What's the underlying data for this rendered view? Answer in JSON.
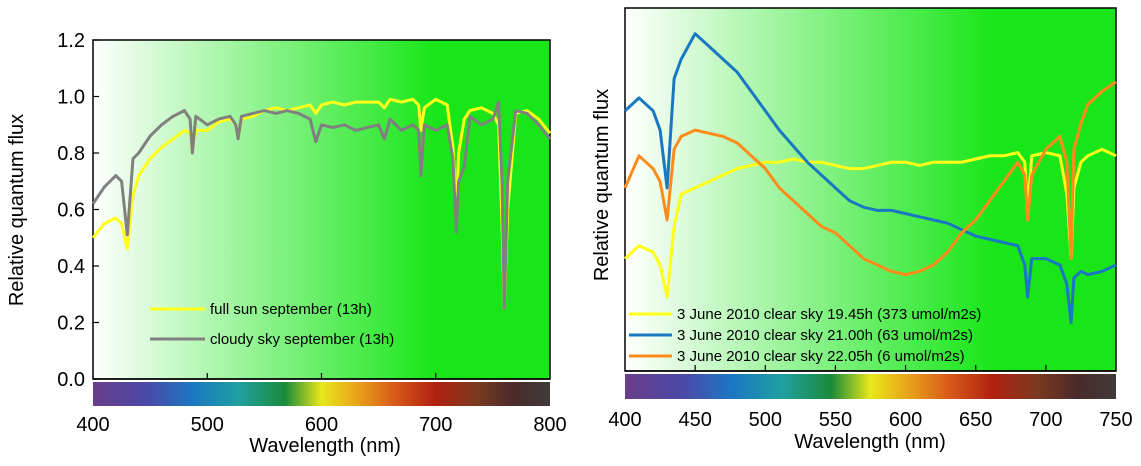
{
  "colors": {
    "bg_start": "#ffffff",
    "bg_end": "#19e619",
    "full_sun": "#ffff1a",
    "cloudy": "#808080",
    "h1945": "#ffff1a",
    "h2100": "#1a78c2",
    "h2205": "#ff8c1a"
  },
  "chart_data": [
    {
      "type": "line",
      "title": "",
      "xlabel": "Wavelength (nm)",
      "ylabel": "Relative quantum flux",
      "xlim": [
        400,
        800
      ],
      "ylim": [
        0,
        1.2
      ],
      "x_ticks": [
        "400",
        "500",
        "600",
        "700",
        "800"
      ],
      "y_ticks": [
        "0.0",
        "0.2",
        "0.4",
        "0.6",
        "0.8",
        "1.0",
        "1.2"
      ],
      "grid": false,
      "legend_position": "bottom-center",
      "spectrum_bar": true,
      "series": [
        {
          "name": "full sun september (13h)",
          "x": [
            400,
            410,
            420,
            425,
            430,
            435,
            440,
            450,
            460,
            470,
            480,
            485,
            487,
            490,
            500,
            510,
            520,
            525,
            527,
            530,
            540,
            550,
            560,
            570,
            580,
            590,
            595,
            600,
            610,
            620,
            630,
            640,
            650,
            655,
            660,
            670,
            680,
            685,
            687,
            690,
            700,
            710,
            715,
            718,
            720,
            725,
            730,
            740,
            750,
            755,
            758,
            760,
            763,
            770,
            780,
            790,
            800
          ],
          "y": [
            0.5,
            0.55,
            0.57,
            0.55,
            0.46,
            0.65,
            0.72,
            0.78,
            0.82,
            0.85,
            0.88,
            0.87,
            0.8,
            0.88,
            0.88,
            0.91,
            0.92,
            0.9,
            0.85,
            0.92,
            0.93,
            0.95,
            0.96,
            0.95,
            0.96,
            0.97,
            0.94,
            0.97,
            0.98,
            0.97,
            0.98,
            0.98,
            0.98,
            0.96,
            0.99,
            0.98,
            0.99,
            0.97,
            0.88,
            0.96,
            0.99,
            0.97,
            0.82,
            0.6,
            0.8,
            0.92,
            0.95,
            0.96,
            0.94,
            0.9,
            0.55,
            0.25,
            0.6,
            0.94,
            0.95,
            0.92,
            0.87
          ]
        },
        {
          "name": "cloudy sky september (13h)",
          "x": [
            400,
            405,
            410,
            420,
            425,
            430,
            435,
            440,
            450,
            460,
            470,
            480,
            485,
            487,
            490,
            500,
            510,
            520,
            525,
            527,
            530,
            540,
            550,
            560,
            570,
            580,
            590,
            595,
            600,
            610,
            620,
            630,
            640,
            650,
            655,
            660,
            670,
            680,
            685,
            687,
            690,
            700,
            710,
            715,
            718,
            720,
            725,
            730,
            740,
            750,
            755,
            758,
            760,
            763,
            770,
            780,
            790,
            800
          ],
          "y": [
            0.62,
            0.65,
            0.68,
            0.72,
            0.7,
            0.51,
            0.78,
            0.8,
            0.86,
            0.9,
            0.93,
            0.95,
            0.92,
            0.8,
            0.93,
            0.9,
            0.92,
            0.93,
            0.9,
            0.85,
            0.93,
            0.94,
            0.95,
            0.94,
            0.95,
            0.94,
            0.92,
            0.84,
            0.9,
            0.89,
            0.9,
            0.88,
            0.89,
            0.9,
            0.85,
            0.92,
            0.88,
            0.9,
            0.88,
            0.72,
            0.9,
            0.88,
            0.9,
            0.78,
            0.52,
            0.7,
            0.75,
            0.93,
            0.9,
            0.92,
            0.98,
            0.7,
            0.25,
            0.7,
            0.95,
            0.94,
            0.9,
            0.85
          ]
        }
      ]
    },
    {
      "type": "line",
      "title": "",
      "xlabel": "Wavelength (nm)",
      "ylabel": "Relative quantum flux",
      "xlim": [
        400,
        750
      ],
      "x_ticks": [
        "400",
        "450",
        "500",
        "550",
        "600",
        "650",
        "700",
        "750"
      ],
      "y_ticks": [],
      "grid": false,
      "legend_position": "bottom-left",
      "spectrum_bar": true,
      "series": [
        {
          "name": "3 June 2010 clear sky 19.45h (373 umol/m2s)",
          "x": [
            400,
            410,
            420,
            425,
            430,
            435,
            440,
            450,
            460,
            470,
            480,
            490,
            500,
            510,
            520,
            530,
            540,
            550,
            560,
            570,
            580,
            590,
            600,
            610,
            620,
            630,
            640,
            650,
            660,
            670,
            680,
            685,
            687,
            690,
            700,
            710,
            715,
            718,
            720,
            725,
            730,
            740,
            750
          ],
          "y": [
            0.4,
            0.44,
            0.42,
            0.38,
            0.28,
            0.5,
            0.6,
            0.62,
            0.64,
            0.66,
            0.68,
            0.69,
            0.7,
            0.7,
            0.71,
            0.7,
            0.7,
            0.69,
            0.68,
            0.68,
            0.69,
            0.7,
            0.7,
            0.69,
            0.7,
            0.7,
            0.7,
            0.71,
            0.72,
            0.72,
            0.73,
            0.7,
            0.55,
            0.72,
            0.73,
            0.72,
            0.6,
            0.4,
            0.62,
            0.7,
            0.72,
            0.74,
            0.72
          ]
        },
        {
          "name": "3 June 2010 clear sky 21.00h (63 umol/m2s)",
          "x": [
            400,
            410,
            420,
            425,
            430,
            435,
            440,
            450,
            460,
            470,
            480,
            490,
            500,
            510,
            520,
            530,
            540,
            550,
            560,
            570,
            580,
            590,
            600,
            610,
            620,
            630,
            640,
            650,
            660,
            670,
            680,
            685,
            687,
            690,
            700,
            710,
            715,
            718,
            720,
            725,
            730,
            740,
            750
          ],
          "y": [
            0.86,
            0.9,
            0.86,
            0.8,
            0.62,
            0.96,
            1.02,
            1.1,
            1.06,
            1.02,
            0.98,
            0.92,
            0.86,
            0.8,
            0.75,
            0.7,
            0.66,
            0.62,
            0.58,
            0.56,
            0.55,
            0.55,
            0.54,
            0.53,
            0.52,
            0.51,
            0.49,
            0.47,
            0.46,
            0.45,
            0.44,
            0.38,
            0.28,
            0.4,
            0.4,
            0.38,
            0.32,
            0.2,
            0.34,
            0.36,
            0.35,
            0.36,
            0.38
          ]
        },
        {
          "name": "3 June 2010 clear sky 22.05h (6 umol/m2s)",
          "x": [
            400,
            410,
            420,
            425,
            430,
            435,
            440,
            450,
            460,
            470,
            480,
            490,
            500,
            510,
            520,
            530,
            540,
            550,
            560,
            570,
            580,
            590,
            600,
            610,
            620,
            630,
            640,
            650,
            660,
            670,
            680,
            685,
            687,
            690,
            700,
            710,
            715,
            718,
            720,
            725,
            730,
            740,
            750
          ],
          "y": [
            0.62,
            0.72,
            0.68,
            0.64,
            0.52,
            0.74,
            0.78,
            0.8,
            0.79,
            0.78,
            0.76,
            0.72,
            0.68,
            0.62,
            0.58,
            0.54,
            0.5,
            0.48,
            0.44,
            0.4,
            0.38,
            0.36,
            0.35,
            0.36,
            0.38,
            0.42,
            0.48,
            0.52,
            0.58,
            0.64,
            0.7,
            0.66,
            0.52,
            0.66,
            0.74,
            0.78,
            0.7,
            0.4,
            0.74,
            0.82,
            0.88,
            0.92,
            0.95
          ]
        }
      ]
    }
  ]
}
